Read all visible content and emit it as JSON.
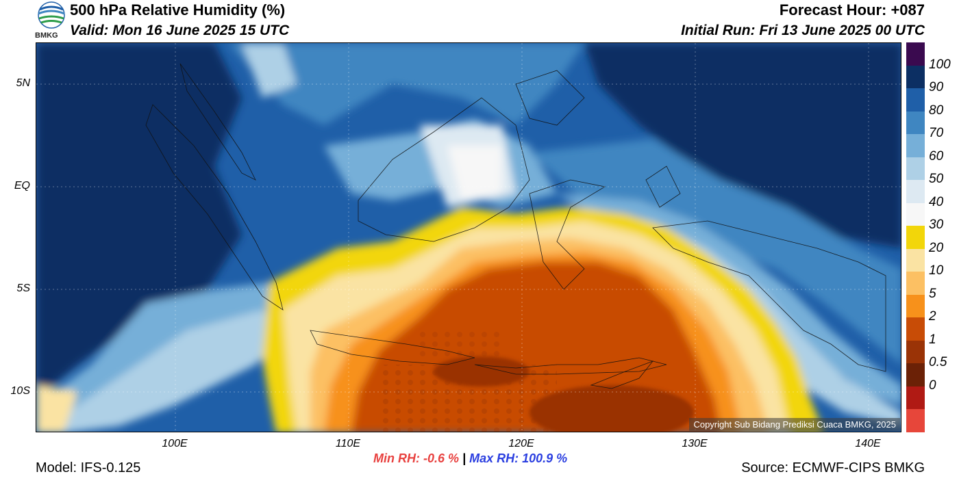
{
  "header": {
    "title": "500 hPa Relative Humidity (%)",
    "valid": "Valid: Mon 16 June 2025 15 UTC",
    "forecast_hour": "Forecast Hour: +087",
    "initial_run": "Initial Run: Fri 13 June 2025 00 UTC",
    "logo_text": "BMKG"
  },
  "map": {
    "lat_labels": [
      "5N",
      "EQ",
      "5S",
      "10S"
    ],
    "lon_labels": [
      "100E",
      "110E",
      "120E",
      "130E",
      "140E"
    ],
    "copyright": "Copyright Sub Bidang Prediksi Cuaca BMKG, 2025"
  },
  "colorbar": {
    "labels": [
      "100",
      "90",
      "80",
      "70",
      "60",
      "50",
      "40",
      "30",
      "20",
      "10",
      "5",
      "2",
      "1",
      "0.5",
      "0"
    ],
    "colors": [
      "#3a0a4f",
      "#0c2f63",
      "#1f5fa8",
      "#3f86c1",
      "#76afd8",
      "#aed0e6",
      "#dde9f2",
      "#f7f7f7",
      "#f2d60a",
      "#fae3a3",
      "#fcc063",
      "#f7911b",
      "#c84c06",
      "#9a3306",
      "#6b2106",
      "#b01a14",
      "#e7463a"
    ]
  },
  "footer": {
    "min_rh": "Min RH:  -0.6 %",
    "separator": "|",
    "max_rh": "Max RH: 100.9 %",
    "model": "Model: IFS-0.125",
    "source": "Source: ECMWF-CIPS BMKG"
  }
}
